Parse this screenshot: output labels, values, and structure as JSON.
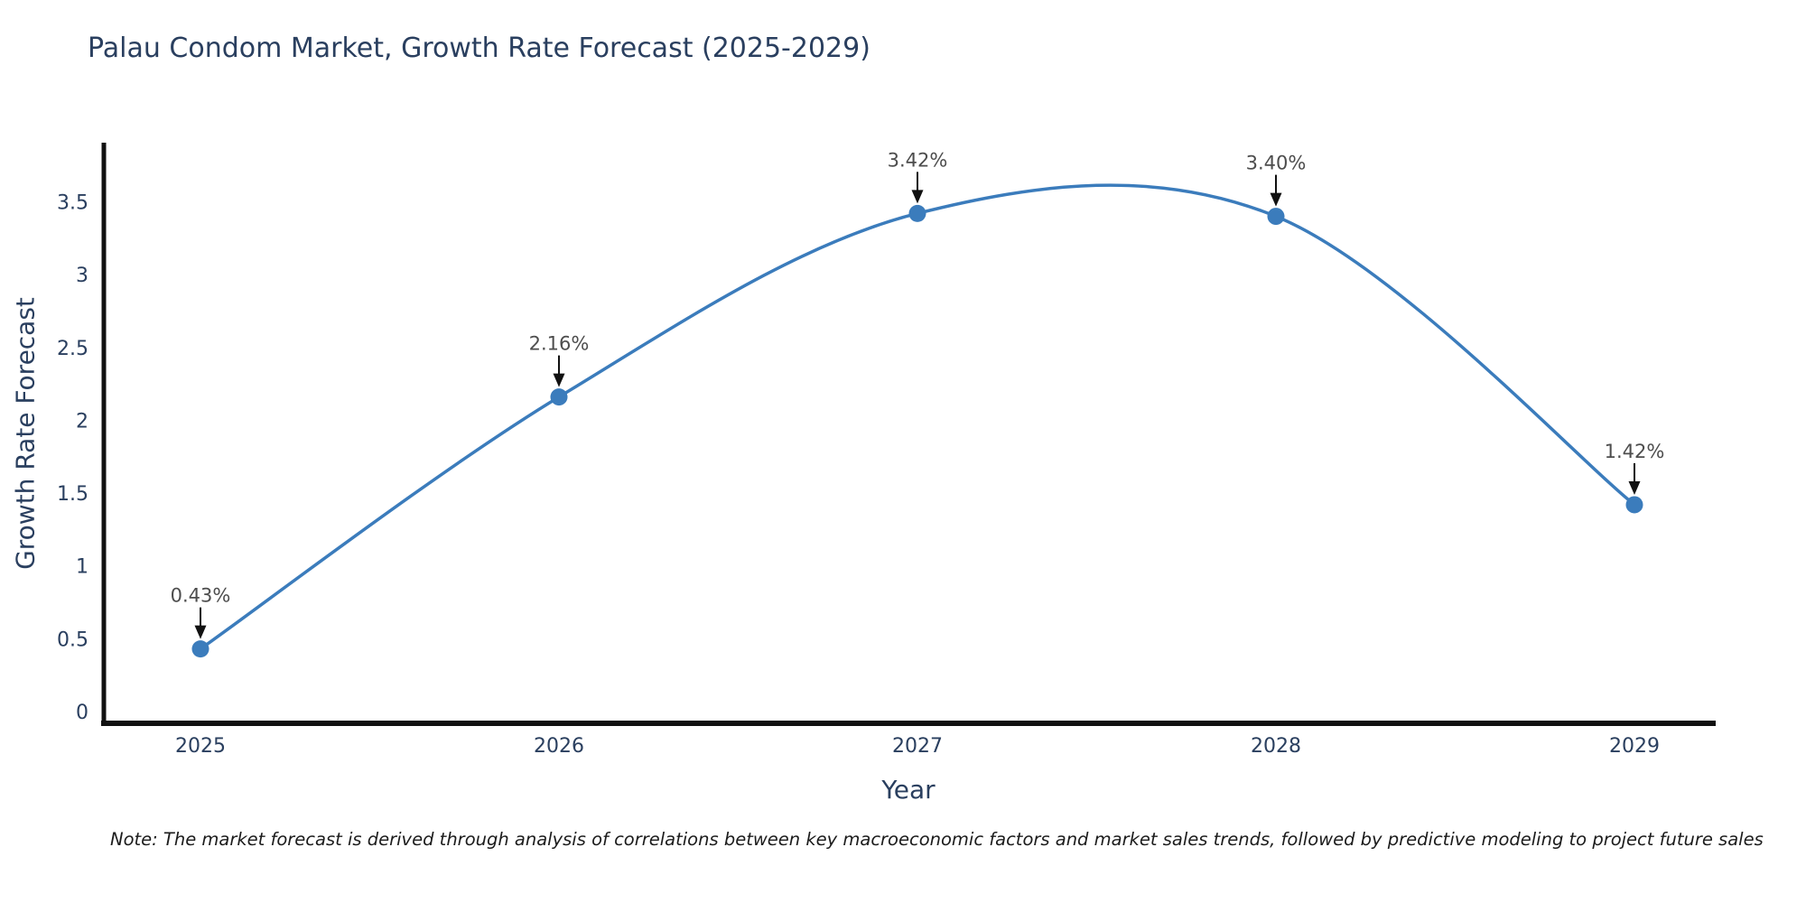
{
  "header": {
    "title": "Palau Condom Market, Growth Rate Forecast (2025-2029)"
  },
  "footnote": "Note: The market forecast is derived through analysis of correlations between key macroeconomic factors and market sales trends, followed by predictive modeling to project future sales",
  "chart_data": {
    "type": "line",
    "title": "Palau Condom Market, Growth Rate Forecast (2025-2029)",
    "xlabel": "Year",
    "ylabel": "Growth Rate Forecast",
    "categories": [
      "2025",
      "2026",
      "2027",
      "2028",
      "2029"
    ],
    "values": [
      0.43,
      2.16,
      3.42,
      3.4,
      1.42
    ],
    "point_labels": [
      "0.43%",
      "2.16%",
      "3.42%",
      "3.40%",
      "1.42%"
    ],
    "ytick_labels": [
      "0",
      "0.5",
      "1",
      "1.5",
      "2",
      "2.5",
      "3",
      "3.5"
    ],
    "ytick_values": [
      0,
      0.5,
      1,
      1.5,
      2,
      2.5,
      3,
      3.5
    ],
    "ylim": [
      0,
      3.95
    ],
    "line_shape": "spline",
    "grid": false,
    "legend_position": "none",
    "annotation_style": "down-arrow-above-point",
    "colors": {
      "line": "#3b7cbc",
      "marker": "#3b7cbc",
      "axis_line": "#111111",
      "axis_text": "#2a3f5f",
      "annotation_text": "#4d4d4d",
      "arrow": "#111111",
      "title_text": "#2a3f5f",
      "background": "#ffffff"
    }
  }
}
